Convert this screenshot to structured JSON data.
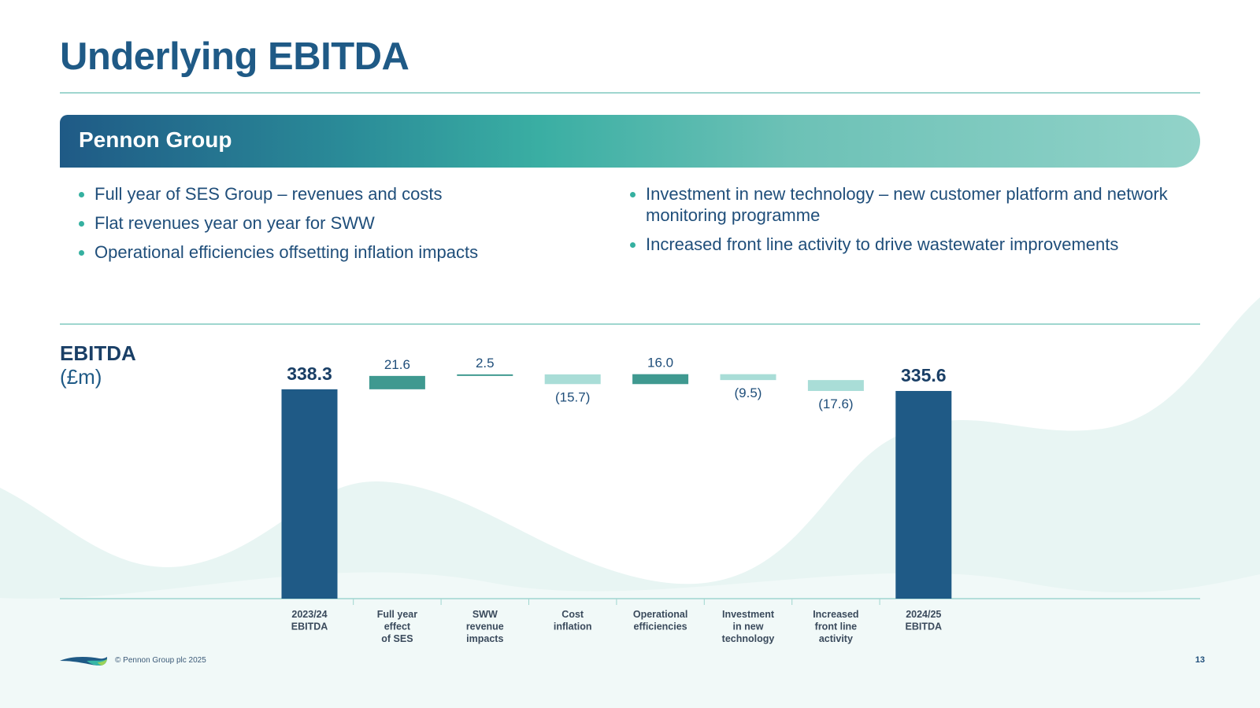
{
  "title": "Underlying EBITDA",
  "banner": {
    "title": "Pennon Group"
  },
  "bullets_left": [
    "Full year of SES Group – revenues and costs",
    "Flat revenues year on year for SWW",
    "Operational efficiencies offsetting inflation impacts"
  ],
  "bullets_right": [
    "Investment in new technology – new customer platform and network monitoring programme",
    "Increased front line activity to drive wastewater improvements"
  ],
  "chart_heading": {
    "main": "EBITDA",
    "unit": "(£m)"
  },
  "chart_data": {
    "type": "bar",
    "subtype": "waterfall",
    "title": "EBITDA",
    "ylabel": "(£m)",
    "categories": [
      [
        "2023/24",
        "EBITDA"
      ],
      [
        "Full year",
        "effect",
        "of SES"
      ],
      [
        "SWW",
        "revenue",
        "impacts"
      ],
      [
        "Cost",
        "inflation"
      ],
      [
        "Operational",
        "efficiencies"
      ],
      [
        "Investment",
        "in new",
        "technology"
      ],
      [
        "Increased",
        "front line",
        "activity"
      ],
      [
        "2024/25",
        "EBITDA"
      ]
    ],
    "values": [
      338.3,
      21.6,
      2.5,
      -15.7,
      16.0,
      -9.5,
      -17.6,
      335.6
    ],
    "labels": [
      "338.3",
      "21.6",
      "2.5",
      "(15.7)",
      "16.0",
      "(9.5)",
      "(17.6)",
      "335.6"
    ],
    "kinds": [
      "total",
      "increase",
      "increase",
      "decrease",
      "increase",
      "decrease",
      "decrease",
      "total"
    ],
    "colors": {
      "total": "#1f5a86",
      "increase": "#3f9990",
      "decrease": "#a9ddd7"
    }
  },
  "footer": {
    "copyright": "© Pennon Group plc 2025",
    "page": "13"
  }
}
